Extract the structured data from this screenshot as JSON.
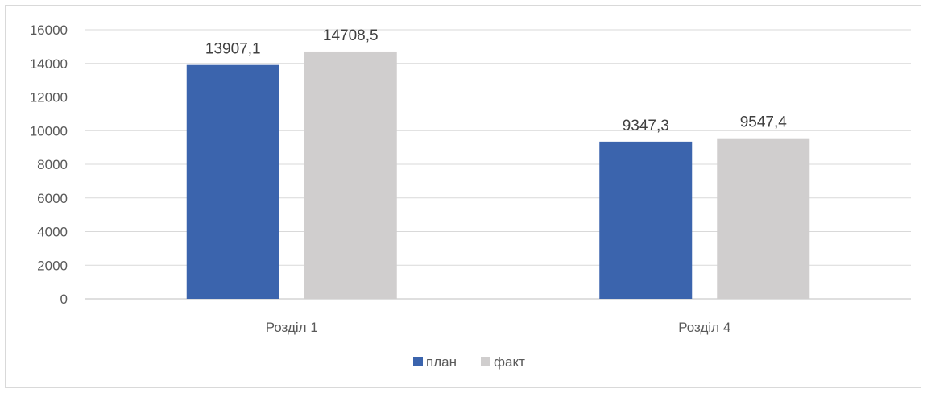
{
  "chart_data": {
    "type": "bar",
    "categories": [
      "Розділ 1",
      "Розділ 4"
    ],
    "series": [
      {
        "name": "план",
        "values": [
          13907.1,
          9347.3
        ],
        "labels": [
          "13907,1",
          "9347,3"
        ]
      },
      {
        "name": "факт",
        "values": [
          14708.5,
          9547.4
        ],
        "labels": [
          "14708,5",
          "9547,4"
        ]
      }
    ],
    "colors": [
      "#3b64ad",
      "#d0cece"
    ],
    "ylim": [
      0,
      16000
    ],
    "yticks": [
      0,
      2000,
      4000,
      6000,
      8000,
      10000,
      12000,
      14000,
      16000
    ],
    "grid": true,
    "legend_position": "bottom",
    "title": "",
    "xlabel": "",
    "ylabel": ""
  }
}
